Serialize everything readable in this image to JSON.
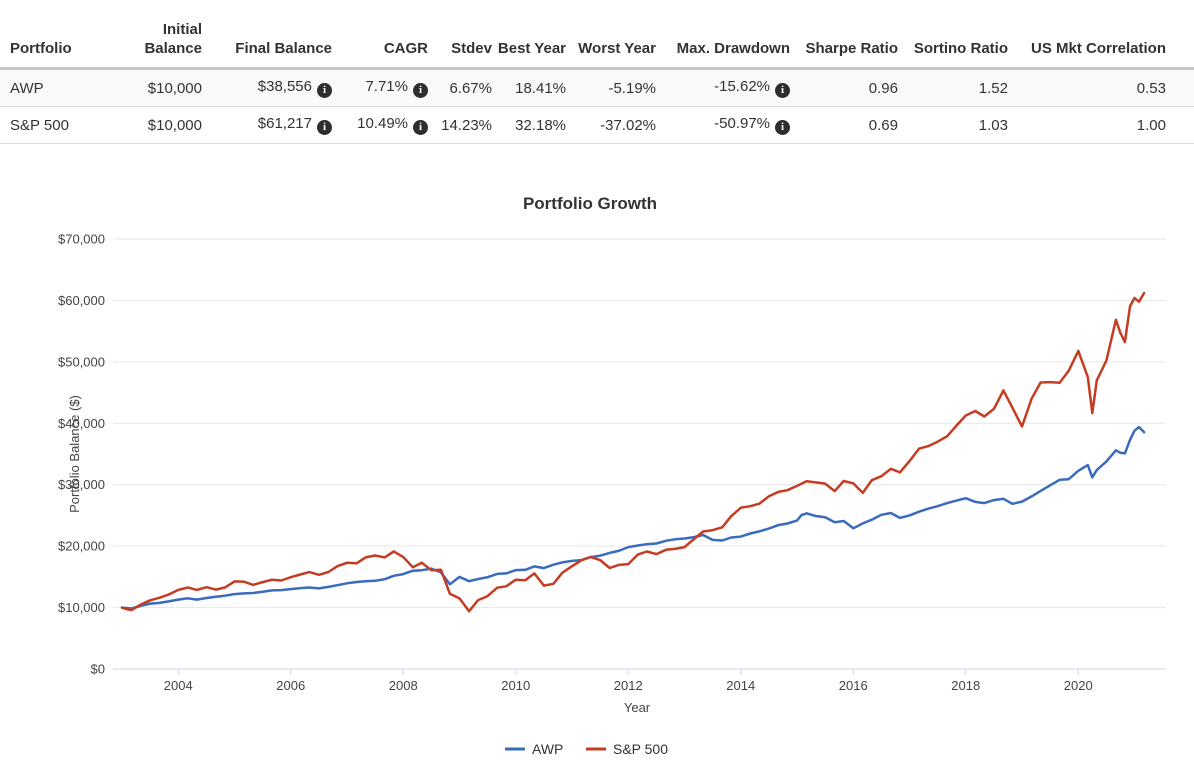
{
  "table": {
    "columns": [
      "Portfolio",
      "Initial Balance",
      "Final Balance",
      "CAGR",
      "Stdev",
      "Best Year",
      "Worst Year",
      "Max. Drawdown",
      "Sharpe Ratio",
      "Sortino Ratio",
      "US Mkt Correlation"
    ],
    "rows": [
      {
        "portfolio": "AWP",
        "initial_balance": "$10,000",
        "final_balance": "$38,556",
        "cagr": "7.71%",
        "stdev": "6.67%",
        "best_year": "18.41%",
        "worst_year": "-5.19%",
        "max_drawdown": "-15.62%",
        "sharpe_ratio": "0.96",
        "sortino_ratio": "1.52",
        "us_mkt_correlation": "0.53"
      },
      {
        "portfolio": "S&P 500",
        "initial_balance": "$10,000",
        "final_balance": "$61,217",
        "cagr": "10.49%",
        "stdev": "14.23%",
        "best_year": "32.18%",
        "worst_year": "-37.02%",
        "max_drawdown": "-50.97%",
        "sharpe_ratio": "0.69",
        "sortino_ratio": "1.03",
        "us_mkt_correlation": "1.00"
      }
    ],
    "info_icon_glyph": "i"
  },
  "chart_data": {
    "type": "line",
    "title": "Portfolio Growth",
    "xlabel": "Year",
    "ylabel": "Portfolio Balance ($)",
    "x_range": [
      2003,
      2021.5
    ],
    "ylim": [
      0,
      70000
    ],
    "grid": true,
    "legend_position": "bottom",
    "grid_color": "#e6e6e6",
    "axis_line_color": "#ccd6eb",
    "xticks": [
      2004,
      2006,
      2008,
      2010,
      2012,
      2014,
      2016,
      2018,
      2020
    ],
    "yticks": [
      {
        "v": 0,
        "label": "$0"
      },
      {
        "v": 10000,
        "label": "$10,000"
      },
      {
        "v": 20000,
        "label": "$20,000"
      },
      {
        "v": 30000,
        "label": "$30,000"
      },
      {
        "v": 40000,
        "label": "$40,000"
      },
      {
        "v": 50000,
        "label": "$50,000"
      },
      {
        "v": 60000,
        "label": "$60,000"
      },
      {
        "v": 70000,
        "label": "$70,000"
      }
    ],
    "series": [
      {
        "name": "AWP",
        "color": "#3a6bbf",
        "final_value": 38556,
        "points": [
          [
            2003.0,
            10000
          ],
          [
            2003.08,
            9930
          ],
          [
            2003.17,
            9850
          ],
          [
            2003.33,
            10280
          ],
          [
            2003.5,
            10640
          ],
          [
            2003.67,
            10760
          ],
          [
            2003.83,
            11000
          ],
          [
            2004.0,
            11300
          ],
          [
            2004.17,
            11510
          ],
          [
            2004.33,
            11300
          ],
          [
            2004.5,
            11560
          ],
          [
            2004.67,
            11750
          ],
          [
            2004.83,
            11930
          ],
          [
            2005.0,
            12200
          ],
          [
            2005.17,
            12300
          ],
          [
            2005.33,
            12380
          ],
          [
            2005.5,
            12590
          ],
          [
            2005.67,
            12800
          ],
          [
            2005.83,
            12850
          ],
          [
            2006.0,
            13000
          ],
          [
            2006.17,
            13170
          ],
          [
            2006.33,
            13260
          ],
          [
            2006.5,
            13120
          ],
          [
            2006.67,
            13370
          ],
          [
            2006.83,
            13640
          ],
          [
            2007.0,
            13950
          ],
          [
            2007.17,
            14160
          ],
          [
            2007.33,
            14300
          ],
          [
            2007.5,
            14360
          ],
          [
            2007.67,
            14620
          ],
          [
            2007.83,
            15170
          ],
          [
            2008.0,
            15450
          ],
          [
            2008.17,
            16000
          ],
          [
            2008.33,
            16080
          ],
          [
            2008.5,
            16350
          ],
          [
            2008.67,
            15730
          ],
          [
            2008.83,
            13800
          ],
          [
            2009.0,
            15000
          ],
          [
            2009.17,
            14300
          ],
          [
            2009.33,
            14650
          ],
          [
            2009.5,
            14940
          ],
          [
            2009.67,
            15480
          ],
          [
            2009.83,
            15560
          ],
          [
            2010.0,
            16100
          ],
          [
            2010.17,
            16150
          ],
          [
            2010.33,
            16700
          ],
          [
            2010.5,
            16420
          ],
          [
            2010.67,
            16980
          ],
          [
            2010.83,
            17350
          ],
          [
            2011.0,
            17600
          ],
          [
            2011.17,
            17730
          ],
          [
            2011.33,
            18210
          ],
          [
            2011.5,
            18450
          ],
          [
            2011.67,
            18900
          ],
          [
            2011.83,
            19230
          ],
          [
            2012.0,
            19850
          ],
          [
            2012.17,
            20110
          ],
          [
            2012.33,
            20310
          ],
          [
            2012.5,
            20430
          ],
          [
            2012.67,
            20870
          ],
          [
            2012.83,
            21120
          ],
          [
            2013.0,
            21250
          ],
          [
            2013.17,
            21480
          ],
          [
            2013.33,
            21810
          ],
          [
            2013.5,
            21010
          ],
          [
            2013.67,
            20920
          ],
          [
            2013.83,
            21400
          ],
          [
            2014.0,
            21550
          ],
          [
            2014.17,
            22050
          ],
          [
            2014.33,
            22400
          ],
          [
            2014.5,
            22850
          ],
          [
            2014.67,
            23420
          ],
          [
            2014.83,
            23680
          ],
          [
            2015.0,
            24150
          ],
          [
            2015.08,
            25050
          ],
          [
            2015.17,
            25350
          ],
          [
            2015.33,
            24900
          ],
          [
            2015.5,
            24700
          ],
          [
            2015.67,
            23900
          ],
          [
            2015.83,
            24100
          ],
          [
            2016.0,
            22900
          ],
          [
            2016.17,
            23700
          ],
          [
            2016.33,
            24300
          ],
          [
            2016.5,
            25100
          ],
          [
            2016.67,
            25400
          ],
          [
            2016.83,
            24600
          ],
          [
            2017.0,
            25000
          ],
          [
            2017.17,
            25600
          ],
          [
            2017.33,
            26100
          ],
          [
            2017.5,
            26500
          ],
          [
            2017.67,
            27000
          ],
          [
            2017.83,
            27400
          ],
          [
            2018.0,
            27800
          ],
          [
            2018.17,
            27200
          ],
          [
            2018.33,
            27000
          ],
          [
            2018.5,
            27500
          ],
          [
            2018.67,
            27700
          ],
          [
            2018.83,
            26900
          ],
          [
            2019.0,
            27250
          ],
          [
            2019.17,
            28100
          ],
          [
            2019.33,
            29000
          ],
          [
            2019.5,
            29900
          ],
          [
            2019.67,
            30800
          ],
          [
            2019.83,
            30900
          ],
          [
            2020.0,
            32270
          ],
          [
            2020.17,
            33200
          ],
          [
            2020.25,
            31200
          ],
          [
            2020.33,
            32400
          ],
          [
            2020.5,
            33800
          ],
          [
            2020.67,
            35600
          ],
          [
            2020.75,
            35200
          ],
          [
            2020.83,
            35100
          ],
          [
            2020.92,
            37300
          ],
          [
            2021.0,
            38800
          ],
          [
            2021.08,
            39400
          ],
          [
            2021.17,
            38556
          ]
        ]
      },
      {
        "name": "S&P 500",
        "color": "#c53c22",
        "final_value": 61217,
        "points": [
          [
            2003.0,
            10000
          ],
          [
            2003.08,
            9740
          ],
          [
            2003.17,
            9590
          ],
          [
            2003.33,
            10480
          ],
          [
            2003.5,
            11180
          ],
          [
            2003.67,
            11610
          ],
          [
            2003.83,
            12130
          ],
          [
            2004.0,
            12880
          ],
          [
            2004.17,
            13290
          ],
          [
            2004.33,
            12880
          ],
          [
            2004.5,
            13310
          ],
          [
            2004.67,
            12920
          ],
          [
            2004.83,
            13260
          ],
          [
            2005.0,
            14260
          ],
          [
            2005.17,
            14210
          ],
          [
            2005.33,
            13690
          ],
          [
            2005.5,
            14140
          ],
          [
            2005.67,
            14530
          ],
          [
            2005.83,
            14400
          ],
          [
            2006.0,
            14950
          ],
          [
            2006.17,
            15380
          ],
          [
            2006.33,
            15770
          ],
          [
            2006.5,
            15330
          ],
          [
            2006.67,
            15790
          ],
          [
            2006.83,
            16730
          ],
          [
            2007.0,
            17290
          ],
          [
            2007.17,
            17200
          ],
          [
            2007.33,
            18160
          ],
          [
            2007.5,
            18470
          ],
          [
            2007.67,
            18170
          ],
          [
            2007.83,
            19140
          ],
          [
            2008.0,
            18210
          ],
          [
            2008.17,
            16570
          ],
          [
            2008.33,
            17310
          ],
          [
            2008.5,
            16060
          ],
          [
            2008.67,
            16160
          ],
          [
            2008.83,
            12250
          ],
          [
            2009.0,
            11490
          ],
          [
            2009.17,
            9410
          ],
          [
            2009.33,
            11220
          ],
          [
            2009.5,
            11870
          ],
          [
            2009.67,
            13230
          ],
          [
            2009.83,
            13460
          ],
          [
            2010.0,
            14540
          ],
          [
            2010.17,
            14450
          ],
          [
            2010.33,
            15560
          ],
          [
            2010.5,
            13570
          ],
          [
            2010.67,
            13870
          ],
          [
            2010.83,
            15680
          ],
          [
            2011.0,
            16730
          ],
          [
            2011.17,
            17710
          ],
          [
            2011.33,
            18240
          ],
          [
            2011.5,
            17730
          ],
          [
            2011.67,
            16440
          ],
          [
            2011.83,
            16950
          ],
          [
            2012.0,
            17080
          ],
          [
            2012.17,
            18620
          ],
          [
            2012.33,
            19120
          ],
          [
            2012.5,
            18710
          ],
          [
            2012.67,
            19410
          ],
          [
            2012.83,
            19550
          ],
          [
            2013.0,
            19840
          ],
          [
            2013.17,
            21160
          ],
          [
            2013.33,
            22380
          ],
          [
            2013.5,
            22600
          ],
          [
            2013.67,
            23060
          ],
          [
            2013.83,
            24870
          ],
          [
            2014.0,
            26260
          ],
          [
            2014.17,
            26510
          ],
          [
            2014.33,
            26910
          ],
          [
            2014.5,
            28110
          ],
          [
            2014.67,
            28830
          ],
          [
            2014.83,
            29110
          ],
          [
            2015.0,
            29800
          ],
          [
            2015.17,
            30560
          ],
          [
            2015.33,
            30370
          ],
          [
            2015.5,
            30180
          ],
          [
            2015.67,
            28960
          ],
          [
            2015.83,
            30610
          ],
          [
            2016.0,
            30210
          ],
          [
            2016.17,
            28670
          ],
          [
            2016.33,
            30740
          ],
          [
            2016.5,
            31390
          ],
          [
            2016.67,
            32590
          ],
          [
            2016.83,
            32000
          ],
          [
            2017.0,
            33850
          ],
          [
            2017.17,
            35880
          ],
          [
            2017.33,
            36270
          ],
          [
            2017.5,
            37000
          ],
          [
            2017.67,
            37890
          ],
          [
            2017.83,
            39580
          ],
          [
            2018.0,
            41260
          ],
          [
            2018.17,
            42000
          ],
          [
            2018.33,
            41110
          ],
          [
            2018.5,
            42350
          ],
          [
            2018.67,
            45360
          ],
          [
            2018.83,
            42530
          ],
          [
            2019.0,
            39480
          ],
          [
            2019.17,
            44010
          ],
          [
            2019.33,
            46640
          ],
          [
            2019.5,
            46710
          ],
          [
            2019.67,
            46610
          ],
          [
            2019.83,
            48540
          ],
          [
            2020.0,
            51790
          ],
          [
            2020.17,
            47540
          ],
          [
            2020.25,
            41650
          ],
          [
            2020.33,
            46980
          ],
          [
            2020.5,
            50220
          ],
          [
            2020.67,
            56850
          ],
          [
            2020.75,
            54690
          ],
          [
            2020.83,
            53220
          ],
          [
            2020.92,
            59020
          ],
          [
            2021.0,
            60400
          ],
          [
            2021.08,
            59800
          ],
          [
            2021.17,
            61217
          ]
        ]
      }
    ]
  }
}
